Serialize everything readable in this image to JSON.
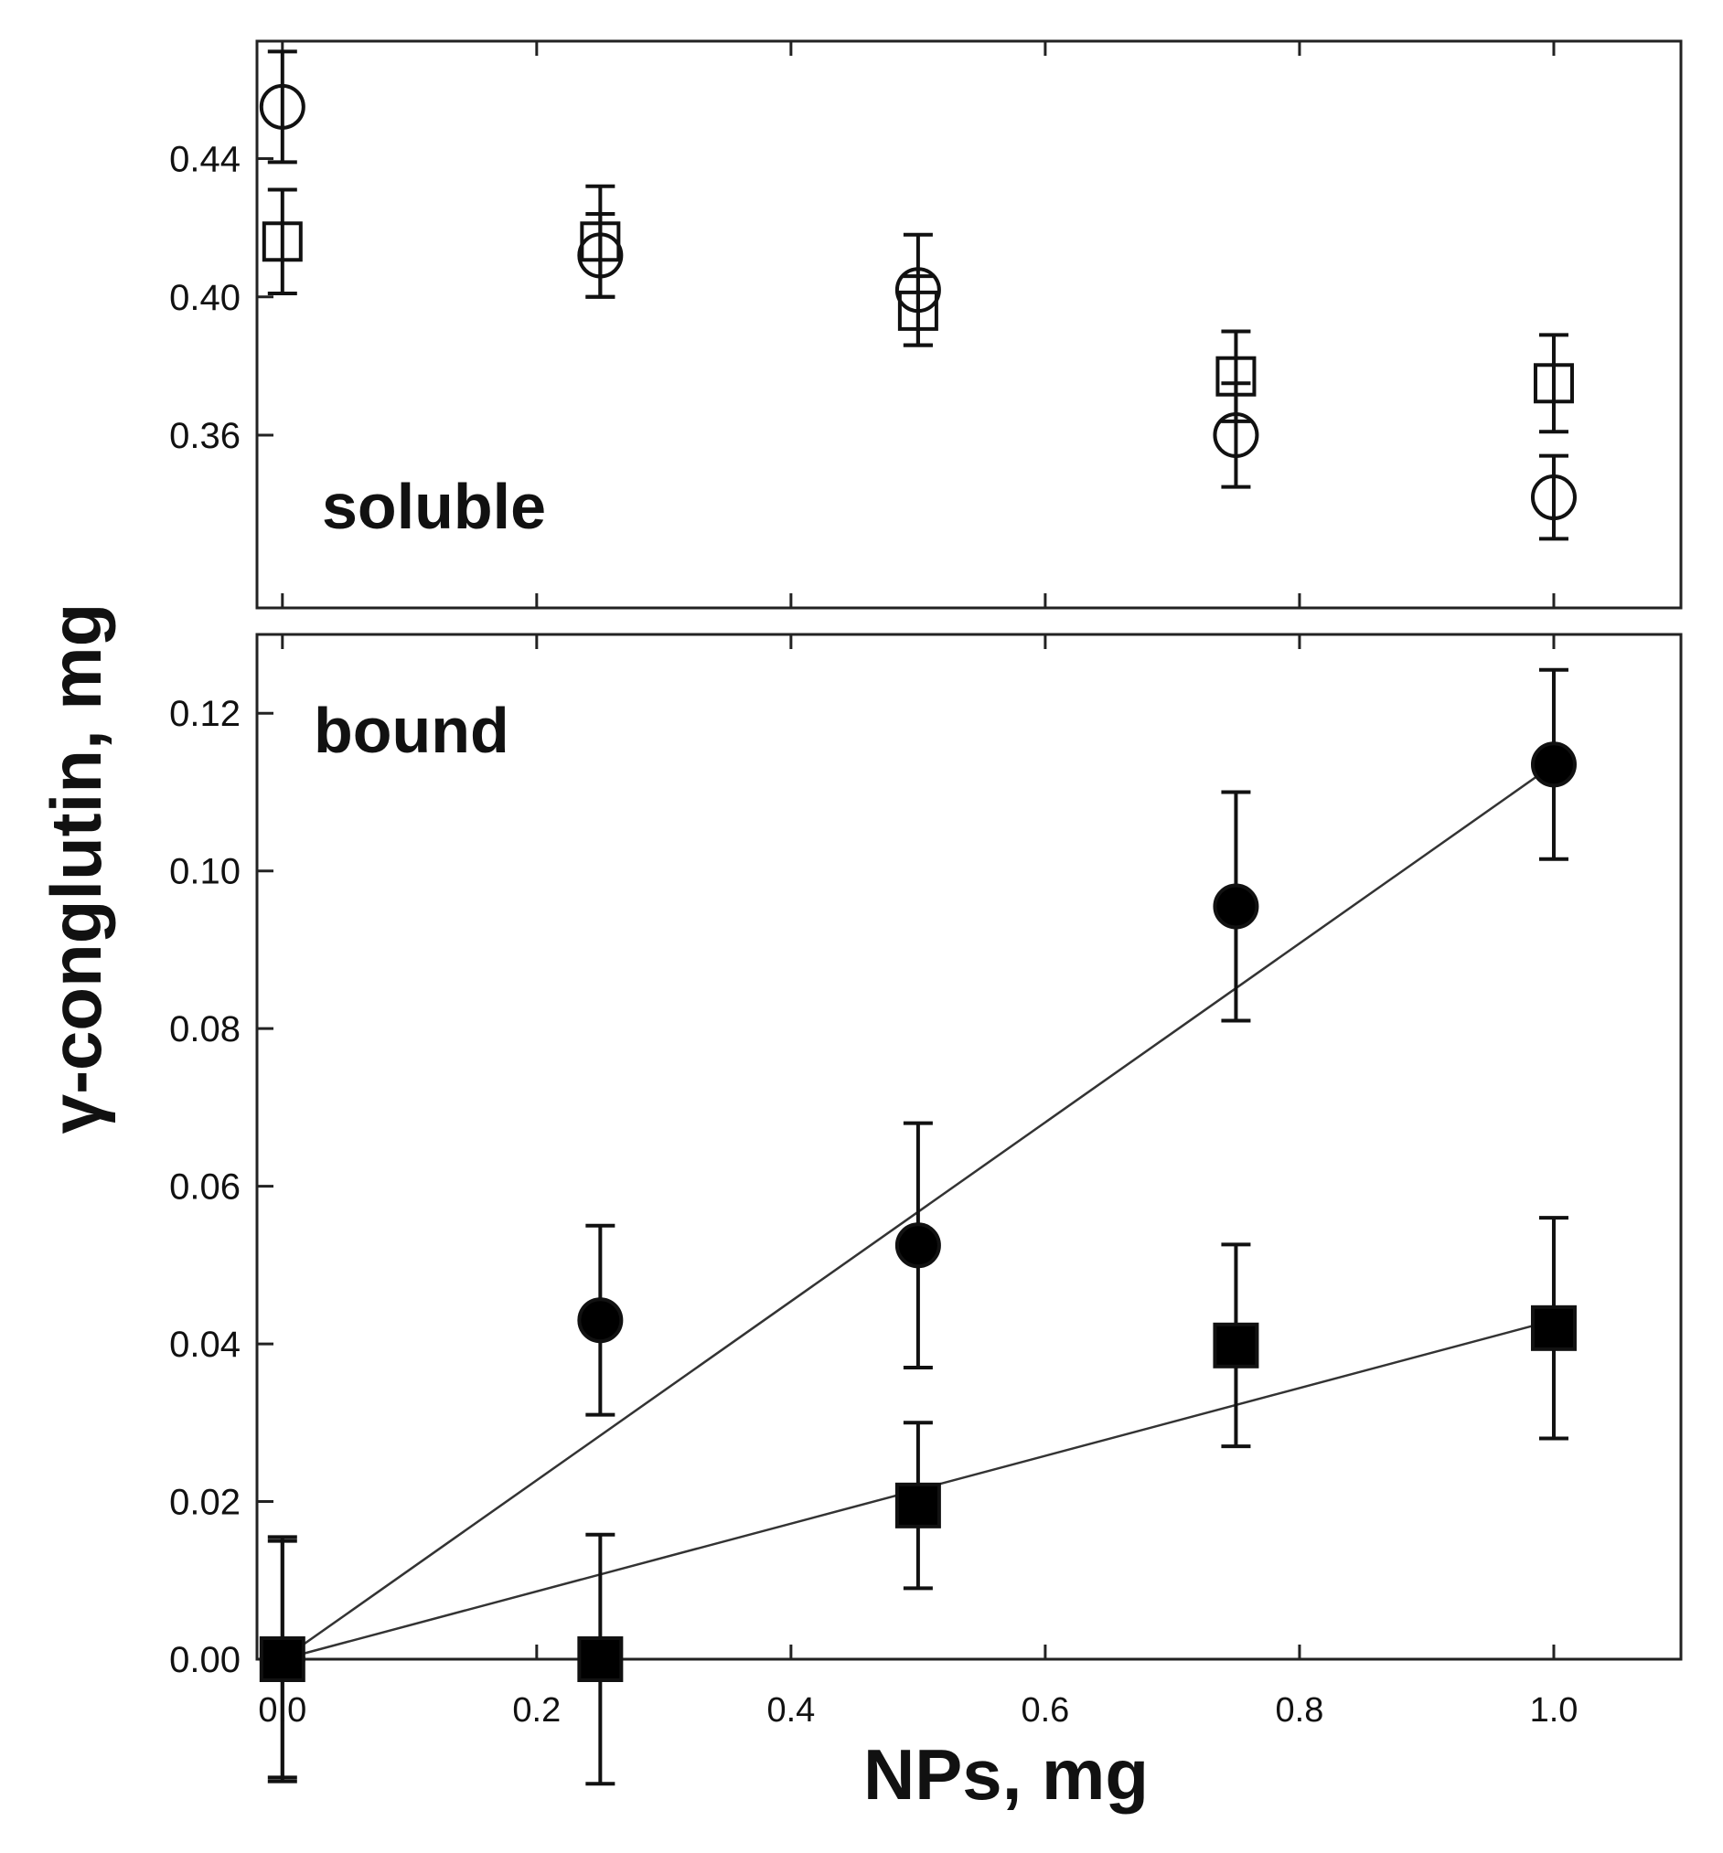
{
  "chart_data": [
    {
      "type": "scatter",
      "panel_label": "soluble",
      "ylim": [
        0.31,
        0.474
      ],
      "xlim": [
        -0.02,
        1.1
      ],
      "yticks": [
        0.36,
        0.4,
        0.44
      ],
      "ytick_labels": [
        "0.36",
        "0.40",
        "0.44"
      ],
      "series": [
        {
          "marker": "open-circle",
          "points": [
            {
              "x": 0.0,
              "y": 0.455,
              "err": 0.016
            },
            {
              "x": 0.25,
              "y": 0.412,
              "err": 0.012
            },
            {
              "x": 0.5,
              "y": 0.402,
              "err": 0.016
            },
            {
              "x": 0.75,
              "y": 0.36,
              "err": 0.015
            },
            {
              "x": 1.0,
              "y": 0.342,
              "err": 0.012
            }
          ]
        },
        {
          "marker": "open-square",
          "points": [
            {
              "x": 0.0,
              "y": 0.416,
              "err": 0.015
            },
            {
              "x": 0.25,
              "y": 0.416,
              "err": 0.016
            },
            {
              "x": 0.5,
              "y": 0.396,
              "err": 0.01
            },
            {
              "x": 0.75,
              "y": 0.377,
              "err": 0.013
            },
            {
              "x": 1.0,
              "y": 0.375,
              "err": 0.014
            }
          ]
        }
      ]
    },
    {
      "type": "scatter",
      "panel_label": "bound",
      "ylim": [
        0.0,
        0.13
      ],
      "xlim": [
        -0.02,
        1.1
      ],
      "yticks": [
        0.0,
        0.02,
        0.04,
        0.06,
        0.08,
        0.1,
        0.12
      ],
      "ytick_labels": [
        "0.00",
        "0.02",
        "0.04",
        "0.06",
        "0.08",
        "0.10",
        "0.12"
      ],
      "xticks": [
        0.0,
        0.2,
        0.4,
        0.6,
        0.8,
        1.0
      ],
      "xtick_labels": [
        "0.0",
        "0.2",
        "0.4",
        "0.6",
        "0.8",
        "1.0"
      ],
      "series": [
        {
          "marker": "filled-circle",
          "points": [
            {
              "x": 0.0,
              "y": 0.0,
              "err": 0.015
            },
            {
              "x": 0.25,
              "y": 0.043,
              "err": 0.012
            },
            {
              "x": 0.5,
              "y": 0.0525,
              "err": 0.0155
            },
            {
              "x": 0.75,
              "y": 0.0955,
              "err": 0.0145
            },
            {
              "x": 1.0,
              "y": 0.1135,
              "err": 0.012
            }
          ],
          "fit_line": {
            "x": [
              0.0,
              1.0
            ],
            "y": [
              0.0,
              0.1135
            ]
          }
        },
        {
          "marker": "filled-square",
          "points": [
            {
              "x": 0.0,
              "y": 0.0,
              "err": 0.0155
            },
            {
              "x": 0.25,
              "y": 0.0,
              "err": 0.0158
            },
            {
              "x": 0.5,
              "y": 0.0195,
              "err": 0.0105
            },
            {
              "x": 0.75,
              "y": 0.0398,
              "err": 0.0128
            },
            {
              "x": 1.0,
              "y": 0.042,
              "err": 0.014
            }
          ],
          "fit_line": {
            "x": [
              0.0,
              1.0
            ],
            "y": [
              0.0,
              0.043
            ]
          }
        }
      ]
    }
  ],
  "axes": {
    "xlabel": "NPs, mg",
    "ylabel": "γ-conglutin, mg"
  }
}
